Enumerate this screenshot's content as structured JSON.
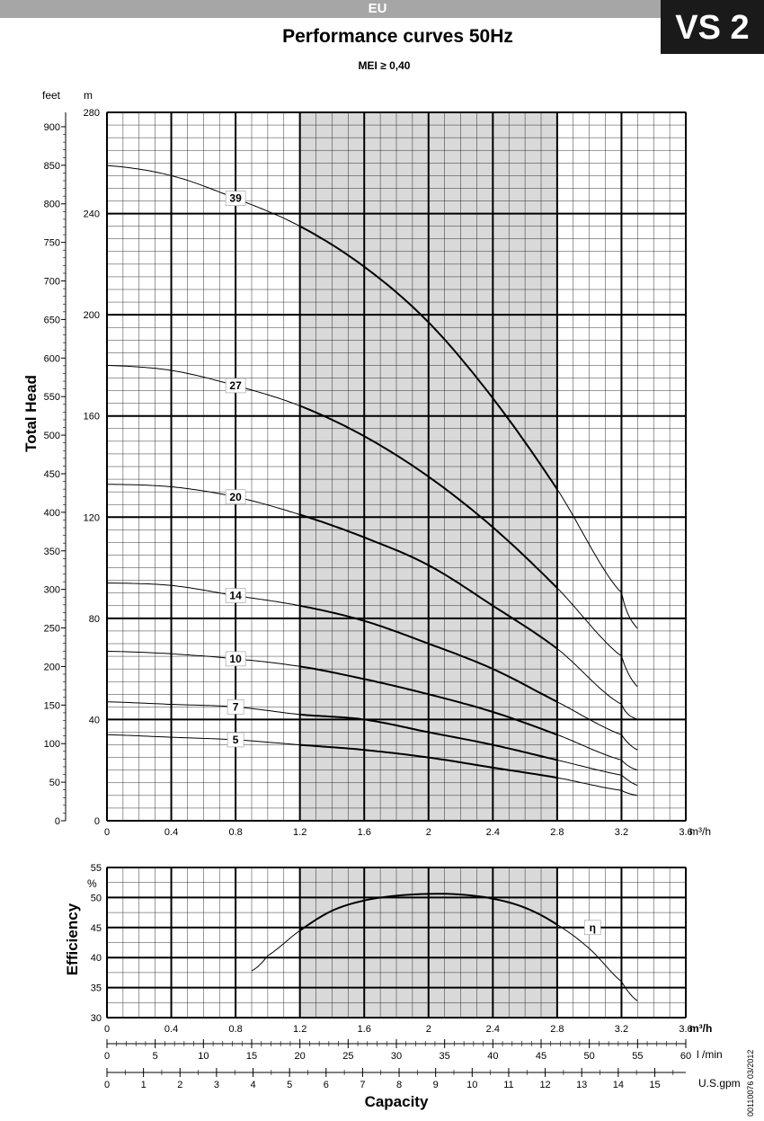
{
  "header": {
    "region_label": "EU",
    "model_badge": "VS 2",
    "title": "Performance curves 50Hz",
    "subtitle": "MEI ≥ 0,40"
  },
  "side_code": "00110076  03/2012",
  "colors": {
    "highlight": "#d9d9d9",
    "grid": "#000000",
    "header_bar": "#a6a6a6",
    "badge": "#1a1a1a"
  },
  "chart_data": [
    {
      "type": "line",
      "ylabel": "Total Head",
      "y_unit_left": "feet",
      "y_unit_right": "m",
      "x_unit": "m³/h",
      "xlim": [
        0,
        3.6
      ],
      "ylim": [
        0,
        280
      ],
      "ylim_feet": [
        0,
        918.6
      ],
      "x_ticks": [
        "0",
        "0.4",
        "0.8",
        "1.2",
        "1.6",
        "2",
        "2.4",
        "2.8",
        "3.2",
        "3.6"
      ],
      "y_ticks_m": [
        "0",
        "40",
        "80",
        "120",
        "160",
        "200",
        "240",
        "280"
      ],
      "y_ticks_feet": [
        "0",
        "50",
        "100",
        "150",
        "200",
        "250",
        "300",
        "350",
        "400",
        "450",
        "500",
        "550",
        "600",
        "650",
        "700",
        "750",
        "800",
        "850",
        "900"
      ],
      "highlight_x": [
        1.2,
        2.8
      ],
      "grid": true,
      "series": [
        {
          "name": "39",
          "x": [
            0,
            0.4,
            0.8,
            1.2,
            1.6,
            2.0,
            2.4,
            2.8,
            3.2,
            3.3
          ],
          "y": [
            259,
            255,
            246,
            235,
            219,
            197,
            167,
            131,
            90,
            76
          ]
        },
        {
          "name": "27",
          "x": [
            0,
            0.4,
            0.8,
            1.2,
            1.6,
            2.0,
            2.4,
            2.8,
            3.2,
            3.3
          ],
          "y": [
            180,
            178,
            172,
            164,
            152,
            136,
            116,
            92,
            65,
            53
          ]
        },
        {
          "name": "20",
          "x": [
            0,
            0.4,
            0.8,
            1.2,
            1.6,
            2.0,
            2.4,
            2.8,
            3.2,
            3.3
          ],
          "y": [
            133,
            132,
            128,
            121,
            112,
            101,
            85,
            68,
            46,
            40
          ]
        },
        {
          "name": "14",
          "x": [
            0,
            0.4,
            0.8,
            1.2,
            1.6,
            2.0,
            2.4,
            2.8,
            3.2,
            3.3
          ],
          "y": [
            94,
            93,
            89,
            85,
            79,
            70,
            60,
            47,
            34,
            28
          ]
        },
        {
          "name": "10",
          "x": [
            0,
            0.4,
            0.8,
            1.2,
            1.6,
            2.0,
            2.4,
            2.8,
            3.2,
            3.3
          ],
          "y": [
            67,
            66,
            64,
            61,
            56,
            50,
            43,
            34,
            24,
            20
          ]
        },
        {
          "name": "7",
          "x": [
            0,
            0.4,
            0.8,
            1.2,
            1.6,
            2.0,
            2.4,
            2.8,
            3.2,
            3.3
          ],
          "y": [
            47,
            46,
            45,
            42,
            40,
            35,
            30,
            24,
            18,
            14
          ]
        },
        {
          "name": "5",
          "x": [
            0,
            0.4,
            0.8,
            1.2,
            1.6,
            2.0,
            2.4,
            2.8,
            3.2,
            3.3
          ],
          "y": [
            34,
            33,
            32,
            30,
            28,
            25,
            21,
            17,
            12,
            10
          ]
        }
      ]
    },
    {
      "type": "line",
      "ylabel": "Efficiency",
      "y_unit": "%",
      "x_unit": "m³/h",
      "xlim": [
        0,
        3.6
      ],
      "ylim": [
        30,
        55
      ],
      "x_ticks": [
        "0",
        "0.4",
        "0.8",
        "1.2",
        "1.6",
        "2",
        "2.4",
        "2.8",
        "3.2",
        "3.6"
      ],
      "y_ticks": [
        "30",
        "35",
        "40",
        "45",
        "50",
        "55"
      ],
      "highlight_x": [
        1.2,
        2.8
      ],
      "grid": true,
      "series": [
        {
          "name": "η",
          "x": [
            0.9,
            1.0,
            1.2,
            1.4,
            1.6,
            1.8,
            2.0,
            2.2,
            2.4,
            2.6,
            2.8,
            3.0,
            3.2,
            3.3
          ],
          "y": [
            37.8,
            40.3,
            44.5,
            47.8,
            49.5,
            50.3,
            50.6,
            50.5,
            49.8,
            48.3,
            45.5,
            41.5,
            36.0,
            32.8
          ]
        }
      ]
    }
  ],
  "capacity_scales": {
    "title": "Capacity",
    "lmin": {
      "unit": "l /min",
      "max": 60,
      "ticks": [
        "0",
        "5",
        "10",
        "15",
        "20",
        "25",
        "30",
        "35",
        "40",
        "45",
        "50",
        "55",
        "60"
      ]
    },
    "usgpm": {
      "unit": "U.S.gpm",
      "max": 15.85,
      "ticks": [
        "0",
        "1",
        "2",
        "3",
        "4",
        "5",
        "6",
        "7",
        "8",
        "9",
        "10",
        "11",
        "12",
        "13",
        "14",
        "15"
      ]
    }
  }
}
